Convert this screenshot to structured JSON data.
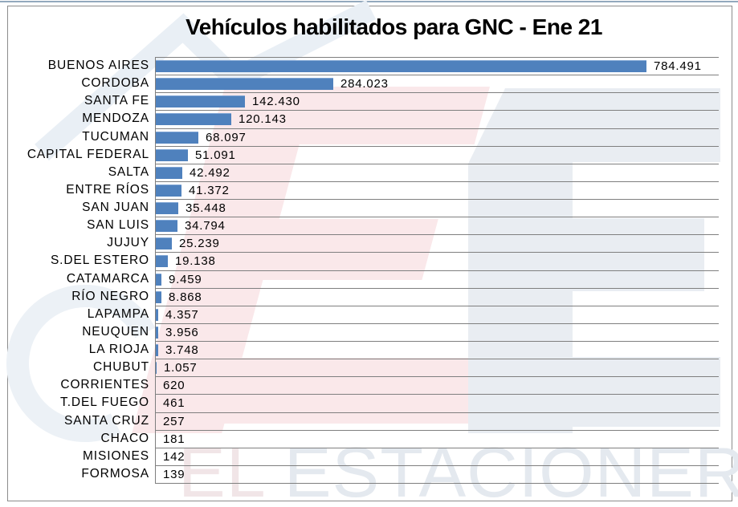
{
  "title": "Vehículos habilitados para GNC - Ene 21",
  "watermark": {
    "text_left": "EL",
    "text_right": " ESTACIONERO",
    "text_left_color": "#f1e5e7",
    "text_right_color": "#e4e9ef",
    "pink_shape_color": "#fae8ea",
    "blue_shape_color": "#e9edf2",
    "swoosh_color": "#e9eff5"
  },
  "colors": {
    "bar": "#4f81bd",
    "bar_top_edge": "#7fa5d4",
    "gridline": "#7f7f7f",
    "axis": "#7f7f7f",
    "frame_border": "#8c8c8c",
    "top_strip": "#93a9bd",
    "text": "#000000"
  },
  "chart_data": {
    "type": "bar",
    "orientation": "horizontal",
    "title": "Vehículos habilitados para GNC - Ene 21",
    "xlabel": "",
    "ylabel": "",
    "xlim": [
      0,
      900000
    ],
    "grid": "category row separators, no value axis ticks shown",
    "legend": "none",
    "categories": [
      "BUENOS AIRES",
      "CORDOBA",
      "SANTA FE",
      "MENDOZA",
      "TUCUMAN",
      "CAPITAL FEDERAL",
      "SALTA",
      "ENTRE RÍOS",
      "SAN JUAN",
      "SAN LUIS",
      "JUJUY",
      "S.DEL ESTERO",
      "CATAMARCA",
      "RÍO NEGRO",
      "LAPAMPA",
      "NEUQUEN",
      "LA RIOJA",
      "CHUBUT",
      "CORRIENTES",
      "T.DEL FUEGO",
      "SANTA CRUZ",
      "CHACO",
      "MISIONES",
      "FORMOSA"
    ],
    "values": [
      784491,
      284023,
      142430,
      120143,
      68097,
      51091,
      42492,
      41372,
      35448,
      34794,
      25239,
      19138,
      9459,
      8868,
      4357,
      3956,
      3748,
      1057,
      620,
      461,
      257,
      181,
      142,
      139
    ],
    "value_labels": [
      "784.491",
      "284.023",
      "142.430",
      "120.143",
      "68.097",
      "51.091",
      "42.492",
      "41.372",
      "35.448",
      "34.794",
      "25.239",
      "19.138",
      "9.459",
      "8.868",
      "4.357",
      "3.956",
      "3.748",
      "1.057",
      "620",
      "461",
      "257",
      "181",
      "142",
      "139"
    ]
  }
}
